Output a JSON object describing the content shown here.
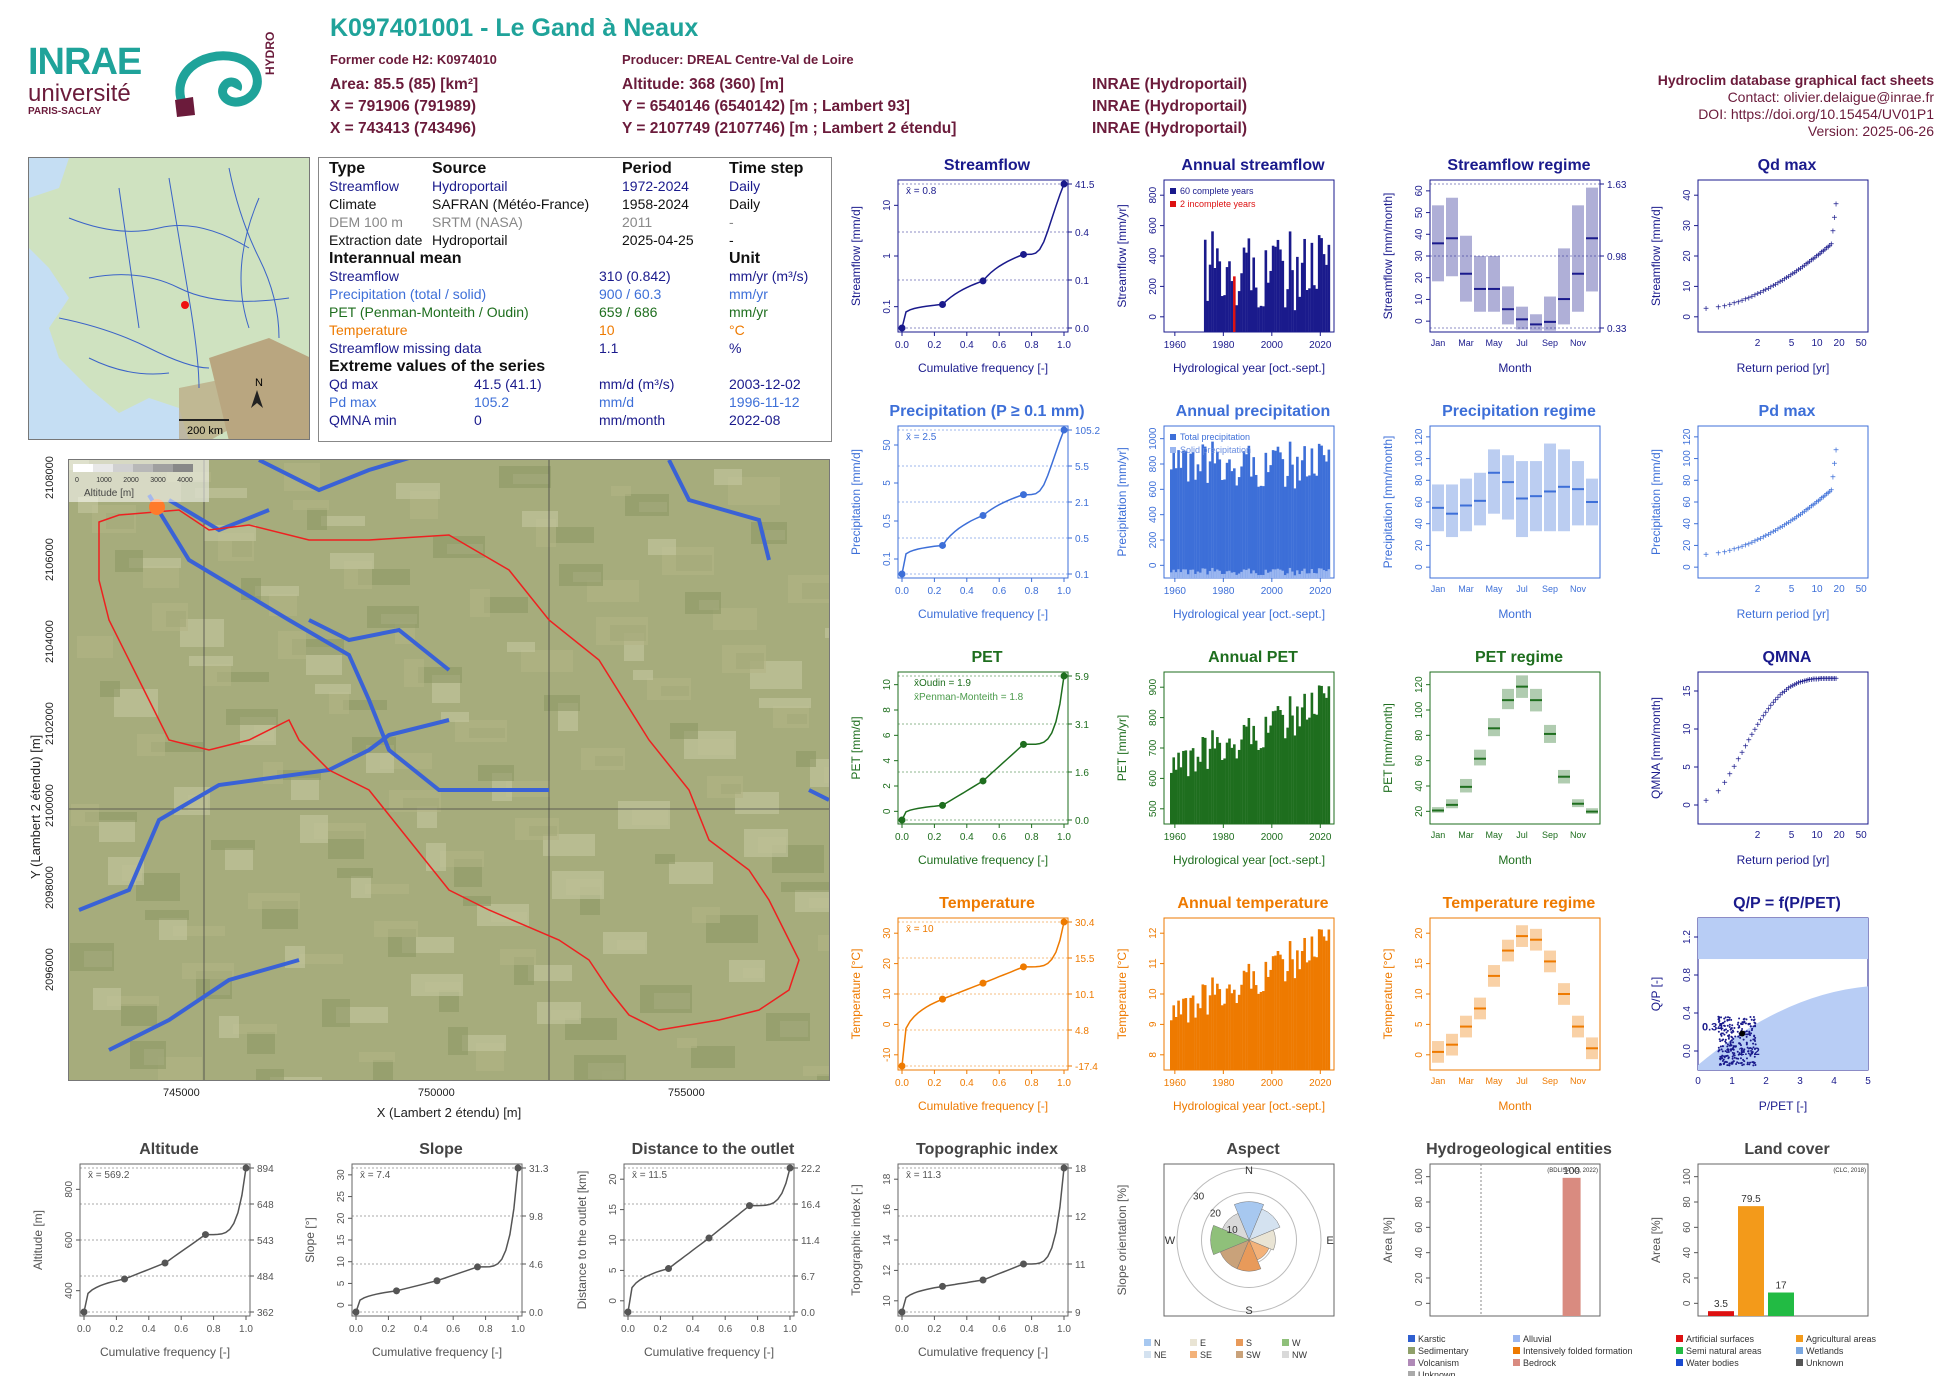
{
  "header": {
    "title": "K097401001 - Le Gand à Neaux",
    "former_code": "Former code H2: K0974010",
    "producer": "Producer: DREAL Centre-Val de Loire",
    "area": "Area: 85.5 (85) [km²]",
    "altitude": "Altitude: 368 (360) [m]",
    "x93": "X = 791906 (791989)",
    "y93": "Y = 6540146 (6540142) [m ; Lambert 93]",
    "x2": "X = 743413 (743496)",
    "y2": "Y = 2107749 (2107746) [m ; Lambert 2 étendu]",
    "src1": "INRAE (Hydroportail)",
    "src2": "INRAE (Hydroportail)",
    "src3": "INRAE (Hydroportail)",
    "sheet": "Hydroclim database graphical fact sheets",
    "contact": "Contact: olivier.delaigue@inrae.fr",
    "doi": "DOI: https://doi.org/10.15454/UV01P1",
    "version": "Version: 2025-06-26"
  },
  "logo": {
    "inrae": "INRAE",
    "univ": "université",
    "paris": "PARIS-SACLAY",
    "hydro": "HYDRO"
  },
  "colors": {
    "teal": "#1fa39a",
    "wine": "#6b1b3b",
    "flow": "#1a1a8c",
    "precip": "#3d6fd8",
    "pet": "#1e6e1e",
    "temp": "#ee7a00",
    "grey": "#555555"
  },
  "info": {
    "h_type": "Type",
    "h_source": "Source",
    "h_period": "Period",
    "h_step": "Time step",
    "rows": [
      {
        "type": "Streamflow",
        "source": "Hydroportail",
        "period": "1972-2024",
        "step": "Daily"
      },
      {
        "type": "Climate",
        "source": "SAFRAN (Météo-France)",
        "period": "1958-2024",
        "step": "Daily"
      },
      {
        "type": "DEM 100 m",
        "source": "SRTM (NASA)",
        "period": "2011",
        "step": "-"
      },
      {
        "type": "Extraction date",
        "source": "Hydroportail",
        "period": "2025-04-25",
        "step": "-"
      }
    ],
    "h_mean": "Interannual mean",
    "h_unit": "Unit",
    "means": [
      {
        "label": "Streamflow",
        "value": "310 (0.842)",
        "unit": "mm/yr (m³/s)"
      },
      {
        "label": "Precipitation (total / solid)",
        "value": "900 / 60.3",
        "unit": "mm/yr"
      },
      {
        "label": "PET (Penman-Monteith / Oudin)",
        "value": "659 / 686",
        "unit": "mm/yr"
      },
      {
        "label": "Temperature",
        "value": "10",
        "unit": "°C"
      },
      {
        "label": "Streamflow missing data",
        "value": "1.1",
        "unit": "%"
      }
    ],
    "h_extreme": "Extreme values of the series",
    "extremes": [
      {
        "label": "Qd max",
        "value": "41.5 (41.1)",
        "unit": "mm/d (m³/s)",
        "date": "2003-12-02"
      },
      {
        "label": "Pd max",
        "value": "105.2",
        "unit": "mm/d",
        "date": "1996-11-12"
      },
      {
        "label": "QMNA min",
        "value": "0",
        "unit": "mm/month",
        "date": "2022-08"
      }
    ]
  },
  "overview_map": {
    "scale": "200 km",
    "north": "N"
  },
  "basin_map": {
    "x_ticks": [
      "745000",
      "750000",
      "755000"
    ],
    "y_ticks": [
      "2108000",
      "2106000",
      "2104000",
      "2102000",
      "2100000",
      "2098000",
      "2096000"
    ],
    "xlabel": "X (Lambert 2 étendu) [m]",
    "ylabel": "Y (Lambert 2 étendu) [m]",
    "legend_ticks": [
      "0",
      "1000",
      "2000",
      "3000",
      "4000"
    ],
    "legend_title": "Altitude [m]"
  },
  "chart_data": [
    {
      "id": "streamflow",
      "type": "line",
      "title": "Streamflow",
      "ylabel": "Streamflow [mm/d]",
      "xlabel": "Cumulative frequency [-]",
      "log": true,
      "mean": "x̄ = 0.8",
      "x": [
        0,
        0.25,
        0.5,
        0.75,
        1
      ],
      "y": [
        0,
        0.1,
        0.4,
        1.5,
        41.5
      ],
      "right_ticks": [
        "41.5",
        "0.4",
        "0.1",
        "0.0"
      ],
      "yticks": [
        "0.1",
        "1",
        "10"
      ]
    },
    {
      "id": "annual_streamflow",
      "type": "bar",
      "title": "Annual streamflow",
      "ylabel": "Streamflow [mm/yr]",
      "xlabel": "Hydrological year [oct.-sept.]",
      "xlim": [
        1958,
        2024
      ],
      "ylim": [
        0,
        900
      ],
      "yticks": [
        "0",
        "200",
        "400",
        "600",
        "800"
      ],
      "legend": [
        "60 complete years",
        "2 incomplete years"
      ]
    },
    {
      "id": "streamflow_regime",
      "type": "box",
      "title": "Streamflow regime",
      "ylabel": "Streamflow [mm/month]",
      "xlabel": "Month",
      "months": [
        "Jan",
        "Mar",
        "May",
        "Jul",
        "Sep",
        "Nov"
      ],
      "medians": [
        35,
        37,
        23,
        17,
        17,
        9,
        5,
        3,
        4,
        13,
        23,
        37
      ],
      "q10": [
        20,
        22,
        12,
        8,
        8,
        3,
        1,
        0.5,
        0.5,
        3,
        8,
        16
      ],
      "q90": [
        50,
        53,
        38,
        30,
        30,
        18,
        10,
        7,
        14,
        33,
        50,
        57
      ],
      "ylim": [
        0,
        60
      ],
      "yticks": [
        "0",
        "10",
        "20",
        "30",
        "40",
        "50",
        "60"
      ],
      "right_ticks": [
        "1.63",
        "0.98",
        "0.33"
      ]
    },
    {
      "id": "qd_max",
      "type": "scatter",
      "title": "Qd max",
      "ylabel": "Streamflow [mm/d]",
      "xlabel": "Return period [yr]",
      "xticks": [
        "2",
        "5",
        "10",
        "20",
        "50"
      ],
      "yticks": [
        "0",
        "10",
        "20",
        "30",
        "40"
      ],
      "ylim": [
        0,
        45
      ]
    },
    {
      "id": "precipitation",
      "type": "line",
      "title": "Precipitation (P ≥ 0.1 mm)",
      "ylabel": "Precipitation [mm/d]",
      "xlabel": "Cumulative frequency [-]",
      "log": true,
      "mean": "x̄ = 2.5",
      "x": [
        0,
        0.25,
        0.5,
        0.75,
        1
      ],
      "y": [
        0.1,
        0.5,
        2.1,
        5.5,
        105.2
      ],
      "right_ticks": [
        "105.2",
        "5.5",
        "2.1",
        "0.5",
        "0.1"
      ],
      "yticks": [
        "0.1",
        "0.5",
        "5",
        "50"
      ]
    },
    {
      "id": "annual_precipitation",
      "type": "bar",
      "title": "Annual precipitation",
      "ylabel": "Precipitation [mm/yr]",
      "xlabel": "Hydrological year [oct.-sept.]",
      "xlim": [
        1958,
        2024
      ],
      "ylim": [
        0,
        1200
      ],
      "yticks": [
        "0",
        "200",
        "400",
        "600",
        "800",
        "1000"
      ],
      "legend": [
        "Total precipitation",
        "Solid precipitation"
      ]
    },
    {
      "id": "precipitation_regime",
      "type": "box",
      "title": "Precipitation regime",
      "ylabel": "Precipitation [mm/month]",
      "xlabel": "Month",
      "months": [
        "Jan",
        "Mar",
        "May",
        "Jul",
        "Sep",
        "Nov"
      ],
      "medians": [
        60,
        55,
        62,
        66,
        90,
        82,
        68,
        70,
        74,
        78,
        76,
        65
      ],
      "q10": [
        40,
        35,
        40,
        45,
        55,
        50,
        35,
        40,
        40,
        40,
        45,
        45
      ],
      "q90": [
        80,
        80,
        85,
        90,
        110,
        105,
        100,
        100,
        115,
        110,
        100,
        85
      ],
      "ylim": [
        0,
        130
      ],
      "yticks": [
        "0",
        "20",
        "40",
        "60",
        "80",
        "100",
        "120"
      ]
    },
    {
      "id": "pd_max",
      "type": "scatter",
      "title": "Pd max",
      "ylabel": "Precipitation [mm/d]",
      "xlabel": "Return period [yr]",
      "xticks": [
        "2",
        "5",
        "10",
        "20",
        "50"
      ],
      "yticks": [
        "0",
        "20",
        "40",
        "60",
        "80",
        "100",
        "120"
      ],
      "ylim": [
        0,
        120
      ]
    },
    {
      "id": "pet",
      "type": "line",
      "title": "PET",
      "ylabel": "PET [mm/d]",
      "xlabel": "Cumulative frequency [-]",
      "mean1": "x̄Oudin = 1.9",
      "mean2": "x̄Penman-Monteith = 1.8",
      "x": [
        0,
        0.25,
        0.5,
        0.75,
        1
      ],
      "y": [
        0,
        0.6,
        1.6,
        3.1,
        5.9
      ],
      "right_ticks": [
        "5.9",
        "3.1",
        "1.6",
        "0.0"
      ],
      "yticks": [
        "0",
        "2",
        "4",
        "6",
        "8",
        "10"
      ]
    },
    {
      "id": "annual_pet",
      "type": "bar",
      "title": "Annual PET",
      "ylabel": "PET [mm/yr]",
      "xlabel": "Hydrological year [oct.-sept.]",
      "xlim": [
        1958,
        2024
      ],
      "ylim": [
        450,
        950
      ],
      "yticks": [
        "500",
        "600",
        "700",
        "800",
        "900"
      ]
    },
    {
      "id": "pet_regime",
      "type": "box",
      "title": "PET regime",
      "ylabel": "PET [mm/month]",
      "xlabel": "Month",
      "months": [
        "Jan",
        "Mar",
        "May",
        "Jul",
        "Sep",
        "Nov"
      ],
      "medians": [
        12,
        17,
        33,
        58,
        85,
        110,
        122,
        110,
        80,
        42,
        18,
        11
      ],
      "q10": [
        10,
        14,
        28,
        52,
        78,
        102,
        112,
        100,
        72,
        36,
        15,
        9
      ],
      "q90": [
        15,
        22,
        40,
        66,
        94,
        120,
        132,
        120,
        88,
        48,
        22,
        14
      ],
      "ylim": [
        0,
        135
      ],
      "yticks": [
        "20",
        "40",
        "60",
        "80",
        "100",
        "120"
      ]
    },
    {
      "id": "qmna",
      "type": "scatter",
      "title": "QMNA",
      "ylabel": "QMNA [mm/month]",
      "xlabel": "Return period [yr]",
      "xticks": [
        "2",
        "5",
        "10",
        "20",
        "50"
      ],
      "yticks": [
        "0",
        "5",
        "10",
        "15"
      ],
      "ylim": [
        0,
        17
      ]
    },
    {
      "id": "temperature",
      "type": "line",
      "title": "Temperature",
      "ylabel": "Temperature [°C]",
      "xlabel": "Cumulative frequency [-]",
      "mean": "x̄ = 10",
      "x": [
        0,
        0.25,
        0.5,
        0.75,
        1
      ],
      "y": [
        -17.4,
        4.8,
        10.1,
        15.5,
        30.4
      ],
      "right_ticks": [
        "30.4",
        "15.5",
        "10.1",
        "4.8",
        "-17.4"
      ],
      "yticks": [
        "-10",
        "0",
        "10",
        "20",
        "30"
      ]
    },
    {
      "id": "annual_temperature",
      "type": "bar",
      "title": "Annual temperature",
      "ylabel": "Temperature [°C]",
      "xlabel": "Hydrological year [oct.-sept.]",
      "xlim": [
        1958,
        2024
      ],
      "ylim": [
        7,
        13
      ],
      "yticks": [
        "8",
        "9",
        "10",
        "11",
        "12"
      ]
    },
    {
      "id": "temperature_regime",
      "type": "box",
      "title": "Temperature regime",
      "ylabel": "Temperature [°C]",
      "xlabel": "Month",
      "months": [
        "Jan",
        "Mar",
        "May",
        "Jul",
        "Sep",
        "Nov"
      ],
      "medians": [
        2.5,
        3.5,
        6,
        8.5,
        13,
        16.5,
        18.5,
        18,
        15,
        10.5,
        6,
        3
      ],
      "q10": [
        1,
        2,
        4.5,
        7,
        11.5,
        15,
        17,
        16.5,
        13.5,
        9,
        4.5,
        1.5
      ],
      "q90": [
        4,
        5,
        7.5,
        10,
        14.5,
        18,
        20,
        19.5,
        16.5,
        12,
        7.5,
        4.5
      ],
      "ylim": [
        0,
        21
      ],
      "yticks": [
        "0",
        "5",
        "10",
        "15",
        "20"
      ]
    },
    {
      "id": "qp_ppet",
      "type": "scatter",
      "title": "Q/P = f(P/PET)",
      "ylabel": "Q/P [-]",
      "xlabel": "P/PET [-]",
      "xticks": [
        "0",
        "1",
        "2",
        "3",
        "4",
        "5"
      ],
      "yticks": [
        "0.0",
        "0.4",
        "0.8",
        "1.2"
      ],
      "point_x": "1.32",
      "point_y": "0.34"
    },
    {
      "id": "altitude",
      "type": "line",
      "title": "Altitude",
      "ylabel": "Altitude [m]",
      "xlabel": "Cumulative frequency [-]",
      "mean": "x̄ = 569.2",
      "x": [
        0,
        0.25,
        0.5,
        0.75,
        1
      ],
      "y": [
        362,
        484,
        543,
        648,
        894
      ],
      "right_ticks": [
        "894",
        "648",
        "543",
        "484",
        "362"
      ],
      "yticks": [
        "400",
        "600",
        "800"
      ]
    },
    {
      "id": "slope",
      "type": "line",
      "title": "Slope",
      "ylabel": "Slope [°]",
      "xlabel": "Cumulative frequency [-]",
      "mean": "x̄ = 7.4",
      "x": [
        0,
        0.25,
        0.5,
        0.75,
        1
      ],
      "y": [
        0,
        4.6,
        6.8,
        9.8,
        31.3
      ],
      "right_ticks": [
        "31.3",
        "9.8",
        "4.6",
        "0.0"
      ],
      "yticks": [
        "0",
        "5",
        "10",
        "15",
        "20",
        "25",
        "30"
      ]
    },
    {
      "id": "distance",
      "type": "line",
      "title": "Distance to the outlet",
      "ylabel": "Distance to the outlet [km]",
      "xlabel": "Cumulative frequency [-]",
      "mean": "x̄ = 11.5",
      "x": [
        0,
        0.25,
        0.5,
        0.75,
        1
      ],
      "y": [
        0,
        6.7,
        11.4,
        16.4,
        22.2
      ],
      "right_ticks": [
        "22.2",
        "16.4",
        "11.4",
        "6.7",
        "0.0"
      ],
      "yticks": [
        "0",
        "5",
        "10",
        "15",
        "20"
      ]
    },
    {
      "id": "topo",
      "type": "line",
      "title": "Topographic index",
      "ylabel": "Topographic index [-]",
      "xlabel": "Cumulative frequency [-]",
      "mean": "x̄ = 11.3",
      "x": [
        0,
        0.25,
        0.5,
        0.75,
        1
      ],
      "y": [
        9,
        10.6,
        11,
        12,
        18
      ],
      "right_ticks": [
        "18",
        "12",
        "11",
        "9"
      ],
      "yticks": [
        "10",
        "12",
        "14",
        "16",
        "18"
      ]
    },
    {
      "id": "aspect",
      "type": "pie",
      "title": "Aspect",
      "ylabel": "Slope orientation [%]",
      "dirs": [
        "N",
        "NE",
        "E",
        "SE",
        "S",
        "SW",
        "W",
        "NW"
      ],
      "values": [
        16,
        14,
        11,
        9,
        13,
        13,
        16,
        12
      ],
      "rings": [
        "10",
        "20",
        "30"
      ],
      "legend": [
        "N",
        "E",
        "S",
        "W",
        "NE",
        "SE",
        "SW",
        "NW"
      ]
    },
    {
      "id": "hydrogeo",
      "type": "bar",
      "title": "Hydrogeological entities",
      "ylabel": "Area [%]",
      "source": "(BDLISA V3, 2022)",
      "categories": [
        "Karstic",
        "Alluvial",
        "Sedimentary",
        "Intensively folded formation",
        "Volcanism",
        "Bedrock",
        "Unknown"
      ],
      "values": [
        0,
        0,
        0,
        0,
        0,
        100,
        0
      ],
      "label": "100",
      "yticks": [
        "0",
        "20",
        "40",
        "60",
        "80",
        "100"
      ]
    },
    {
      "id": "landcover",
      "type": "bar",
      "title": "Land cover",
      "ylabel": "Area [%]",
      "source": "(CLC, 2018)",
      "categories": [
        "Artificial surfaces",
        "Agricultural areas",
        "Semi natural areas",
        "Wetlands",
        "Water bodies",
        "Unknown"
      ],
      "values": [
        3.5,
        79.5,
        17,
        0,
        0,
        0
      ],
      "labels": [
        "3.5",
        "79.5",
        "17"
      ],
      "yticks": [
        "0",
        "20",
        "40",
        "60",
        "80",
        "100"
      ]
    }
  ]
}
